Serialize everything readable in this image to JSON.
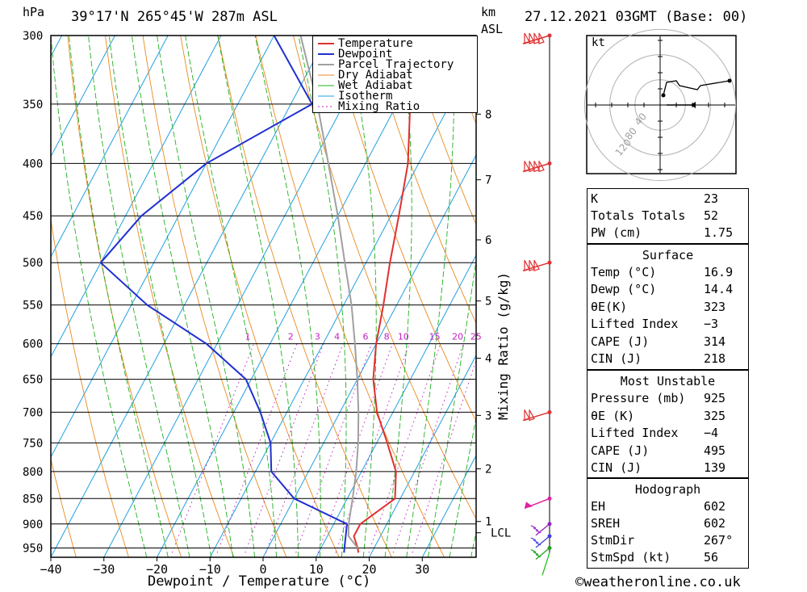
{
  "header": {
    "units_left": "hPa",
    "location": "39°17'N  265°45'W  287m  ASL",
    "units_km": "km",
    "units_asl": "ASL",
    "datetime": "27.12.2021  03GMT  (Base: 00)"
  },
  "chart_data": {
    "type": "line",
    "title": "",
    "xlabel": "Dewpoint / Temperature (°C)",
    "ylabel": "hPa",
    "x_ticks": [
      "−40",
      "−30",
      "−20",
      "−10",
      "0",
      "10",
      "20",
      "30"
    ],
    "xlim": [
      -40,
      40
    ],
    "ylim": [
      950,
      300
    ],
    "pressure_levels": [
      300,
      350,
      400,
      450,
      500,
      550,
      600,
      650,
      700,
      750,
      800,
      850,
      900,
      950
    ],
    "km_ticks": [
      "1",
      "2",
      "3",
      "4",
      "5",
      "6",
      "7",
      "8"
    ],
    "km_label_lcl": "LCL",
    "mixing_ratio_label": "Mixing Ratio (g/kg)",
    "mixing_ratio_values": [
      "1",
      "2",
      "3",
      "4",
      "6",
      "8",
      "10",
      "15",
      "20",
      "25"
    ],
    "legend": [
      "Temperature",
      "Dewpoint",
      "Parcel Trajectory",
      "Dry Adiabat",
      "Wet Adiabat",
      "Isotherm",
      "Mixing Ratio"
    ],
    "legend_placement": "top-right of plot",
    "series": [
      {
        "name": "Temperature",
        "color": "#e03030",
        "points": [
          [
            960,
            17.5
          ],
          [
            950,
            16.9
          ],
          [
            925,
            15
          ],
          [
            900,
            15
          ],
          [
            850,
            19
          ],
          [
            800,
            16.5
          ],
          [
            750,
            12
          ],
          [
            700,
            7
          ],
          [
            650,
            3
          ],
          [
            600,
            0
          ],
          [
            550,
            -2.5
          ],
          [
            500,
            -5.5
          ],
          [
            450,
            -8.5
          ],
          [
            400,
            -12
          ],
          [
            350,
            -17.5
          ],
          [
            300,
            -27
          ]
        ]
      },
      {
        "name": "Dewpoint",
        "color": "#2030d0",
        "points": [
          [
            960,
            14.8
          ],
          [
            950,
            14.4
          ],
          [
            900,
            12.5
          ],
          [
            850,
            0
          ],
          [
            800,
            -7
          ],
          [
            750,
            -10
          ],
          [
            700,
            -15
          ],
          [
            650,
            -21
          ],
          [
            600,
            -32
          ],
          [
            550,
            -47
          ],
          [
            500,
            -60
          ],
          [
            450,
            -57
          ],
          [
            400,
            -50
          ],
          [
            350,
            -36
          ],
          [
            300,
            -50
          ]
        ]
      },
      {
        "name": "Parcel Trajectory",
        "color": "#a0a0a0",
        "points": [
          [
            950,
            16.9
          ],
          [
            925,
            14
          ],
          [
            900,
            12.8
          ],
          [
            850,
            11
          ],
          [
            800,
            9
          ],
          [
            750,
            6.5
          ],
          [
            700,
            3.5
          ],
          [
            650,
            0
          ],
          [
            600,
            -4
          ],
          [
            550,
            -8.5
          ],
          [
            500,
            -14
          ],
          [
            450,
            -20
          ],
          [
            400,
            -27
          ],
          [
            350,
            -35
          ],
          [
            300,
            -45
          ]
        ]
      }
    ]
  },
  "hodograph": {
    "unit": "kt",
    "ring_labels": [
      "40",
      "80",
      "120"
    ]
  },
  "indices": {
    "k_label": "K",
    "k_value": "23",
    "tt_label": "Totals Totals",
    "tt_value": "52",
    "pw_label": "PW (cm)",
    "pw_value": "1.75"
  },
  "surface": {
    "title": "Surface",
    "temp_label": "Temp (°C)",
    "temp_value": "16.9",
    "dewp_label": "Dewp (°C)",
    "dewp_value": "14.4",
    "thetae_label": "θE(K)",
    "thetae_value": "323",
    "li_label": "Lifted Index",
    "li_value": "−3",
    "cape_label": "CAPE (J)",
    "cape_value": "314",
    "cin_label": "CIN (J)",
    "cin_value": "218"
  },
  "most_unstable": {
    "title": "Most Unstable",
    "pressure_label": "Pressure (mb)",
    "pressure_value": "925",
    "thetae_label": "θE (K)",
    "thetae_value": "325",
    "li_label": "Lifted Index",
    "li_value": "−4",
    "cape_label": "CAPE (J)",
    "cape_value": "495",
    "cin_label": "CIN (J)",
    "cin_value": "139"
  },
  "hodograph_table": {
    "title": "Hodograph",
    "eh_label": "EH",
    "eh_value": "602",
    "sreh_label": "SREH",
    "sreh_value": "602",
    "stmdir_label": "StmDir",
    "stmdir_value": "267°",
    "stmspd_label": "StmSpd (kt)",
    "stmspd_value": "56"
  },
  "footer": {
    "copyright": "©weatheronline.co.uk"
  }
}
